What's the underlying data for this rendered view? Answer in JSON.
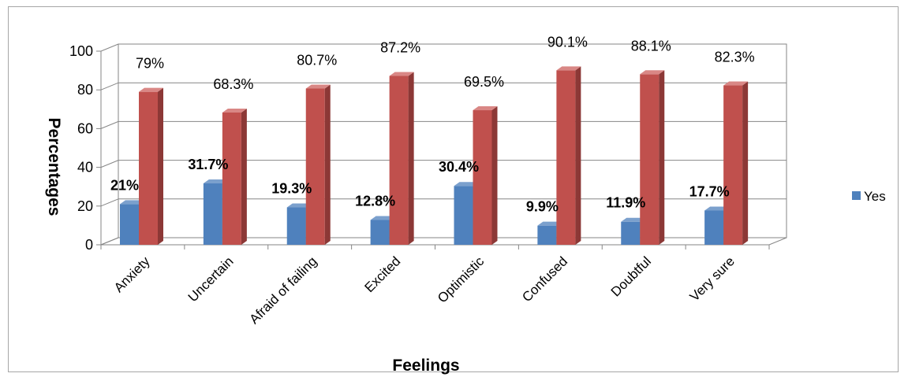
{
  "chart_data": {
    "type": "bar",
    "title": "",
    "xlabel": "Feelings",
    "ylabel": "Percentages",
    "ylim": [
      0,
      100
    ],
    "yticks": [
      0,
      20,
      40,
      60,
      80,
      100
    ],
    "categories": [
      "Anxiety",
      "Uncertain",
      "Afraid of failing",
      "Excited",
      "Optimistic",
      "Confused",
      "Doubtful",
      "Very sure"
    ],
    "series": [
      {
        "name": "Yes",
        "color": "#4f81bd",
        "values": [
          21,
          31.7,
          19.3,
          12.8,
          30.4,
          9.9,
          11.9,
          17.7
        ],
        "labels": [
          "21%",
          "31.7%",
          "19.3%",
          "12.8%",
          "30.4%",
          "9.9%",
          "11.9%",
          "17.7%"
        ]
      },
      {
        "name": "",
        "color": "#c0504d",
        "values": [
          79,
          68.3,
          80.7,
          87.2,
          69.5,
          90.1,
          88.1,
          82.3
        ],
        "labels": [
          "79%",
          "68.3%",
          "80.7%",
          "87.2%",
          "69.5%",
          "90.1%",
          "88.1%",
          "82.3%"
        ]
      }
    ],
    "legend": {
      "entries": [
        "Yes"
      ],
      "position": "right"
    },
    "grid": true,
    "style": "3d-column"
  }
}
